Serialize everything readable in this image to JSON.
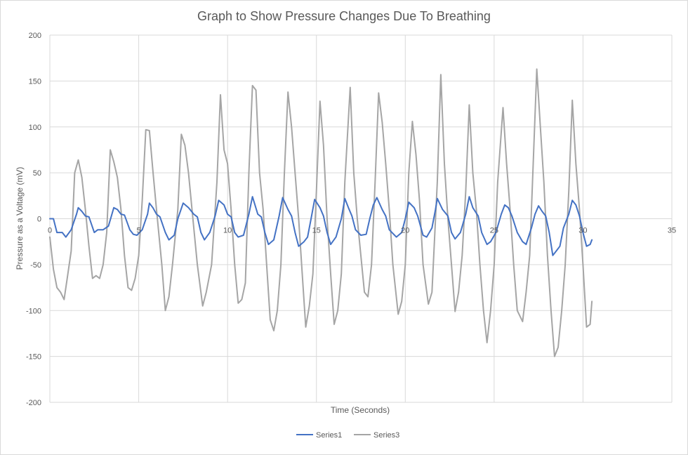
{
  "chart_data": {
    "type": "line",
    "title": "Graph to Show Pressure Changes Due To Breathing",
    "xlabel": "Time (Seconds)",
    "ylabel": "Pressure as a Voltage (mV)",
    "xlim": [
      0,
      35
    ],
    "ylim": [
      -200,
      200
    ],
    "x_ticks": [
      0,
      5,
      10,
      15,
      20,
      25,
      30,
      35
    ],
    "y_ticks": [
      -200,
      -150,
      -100,
      -50,
      0,
      50,
      100,
      150,
      200
    ],
    "grid": true,
    "legend_position": "bottom",
    "series": [
      {
        "name": "Series1",
        "color": "#4472C4",
        "points": [
          [
            0,
            0
          ],
          [
            0.2,
            0
          ],
          [
            0.4,
            -15
          ],
          [
            0.7,
            -15
          ],
          [
            0.9,
            -20
          ],
          [
            1.2,
            -12
          ],
          [
            1.5,
            5
          ],
          [
            1.6,
            12
          ],
          [
            1.8,
            8
          ],
          [
            2.0,
            3
          ],
          [
            2.2,
            2
          ],
          [
            2.5,
            -15
          ],
          [
            2.7,
            -12
          ],
          [
            3.0,
            -12
          ],
          [
            3.3,
            -8
          ],
          [
            3.6,
            12
          ],
          [
            3.8,
            10
          ],
          [
            4.0,
            5
          ],
          [
            4.2,
            4
          ],
          [
            4.5,
            -12
          ],
          [
            4.7,
            -17
          ],
          [
            4.9,
            -18
          ],
          [
            5.2,
            -12
          ],
          [
            5.5,
            5
          ],
          [
            5.6,
            17
          ],
          [
            5.8,
            12
          ],
          [
            6.0,
            5
          ],
          [
            6.2,
            2
          ],
          [
            6.5,
            -15
          ],
          [
            6.7,
            -23
          ],
          [
            7.0,
            -18
          ],
          [
            7.2,
            0
          ],
          [
            7.5,
            17
          ],
          [
            7.8,
            12
          ],
          [
            8.1,
            5
          ],
          [
            8.3,
            2
          ],
          [
            8.5,
            -15
          ],
          [
            8.7,
            -23
          ],
          [
            9.0,
            -15
          ],
          [
            9.3,
            3
          ],
          [
            9.5,
            20
          ],
          [
            9.8,
            15
          ],
          [
            10.0,
            5
          ],
          [
            10.2,
            2
          ],
          [
            10.4,
            -15
          ],
          [
            10.6,
            -20
          ],
          [
            10.9,
            -18
          ],
          [
            11.2,
            5
          ],
          [
            11.4,
            24
          ],
          [
            11.7,
            5
          ],
          [
            11.9,
            2
          ],
          [
            12.1,
            -15
          ],
          [
            12.3,
            -28
          ],
          [
            12.6,
            -23
          ],
          [
            12.9,
            3
          ],
          [
            13.1,
            23
          ],
          [
            13.4,
            10
          ],
          [
            13.6,
            3
          ],
          [
            13.8,
            -15
          ],
          [
            14.0,
            -30
          ],
          [
            14.3,
            -25
          ],
          [
            14.5,
            -20
          ],
          [
            14.7,
            0
          ],
          [
            14.9,
            21
          ],
          [
            15.2,
            12
          ],
          [
            15.4,
            3
          ],
          [
            15.6,
            -15
          ],
          [
            15.8,
            -28
          ],
          [
            16.1,
            -20
          ],
          [
            16.4,
            0
          ],
          [
            16.6,
            22
          ],
          [
            16.8,
            12
          ],
          [
            17.0,
            3
          ],
          [
            17.2,
            -12
          ],
          [
            17.5,
            -18
          ],
          [
            17.8,
            -17
          ],
          [
            18.0,
            0
          ],
          [
            18.2,
            15
          ],
          [
            18.4,
            23
          ],
          [
            18.7,
            10
          ],
          [
            18.9,
            3
          ],
          [
            19.1,
            -12
          ],
          [
            19.5,
            -20
          ],
          [
            19.8,
            -15
          ],
          [
            20.0,
            0
          ],
          [
            20.2,
            18
          ],
          [
            20.5,
            12
          ],
          [
            20.7,
            3
          ],
          [
            21.0,
            -18
          ],
          [
            21.2,
            -20
          ],
          [
            21.5,
            -10
          ],
          [
            21.7,
            10
          ],
          [
            21.8,
            22
          ],
          [
            22.1,
            10
          ],
          [
            22.4,
            3
          ],
          [
            22.6,
            -15
          ],
          [
            22.8,
            -22
          ],
          [
            23.1,
            -15
          ],
          [
            23.4,
            5
          ],
          [
            23.6,
            24
          ],
          [
            23.8,
            12
          ],
          [
            24.1,
            3
          ],
          [
            24.3,
            -15
          ],
          [
            24.6,
            -28
          ],
          [
            24.8,
            -25
          ],
          [
            25.1,
            -15
          ],
          [
            25.4,
            5
          ],
          [
            25.6,
            15
          ],
          [
            25.8,
            12
          ],
          [
            26.0,
            3
          ],
          [
            26.3,
            -15
          ],
          [
            26.6,
            -25
          ],
          [
            26.8,
            -28
          ],
          [
            27.1,
            -10
          ],
          [
            27.3,
            5
          ],
          [
            27.5,
            14
          ],
          [
            27.7,
            8
          ],
          [
            27.9,
            3
          ],
          [
            28.1,
            -15
          ],
          [
            28.3,
            -40
          ],
          [
            28.5,
            -35
          ],
          [
            28.7,
            -30
          ],
          [
            28.9,
            -10
          ],
          [
            29.2,
            5
          ],
          [
            29.4,
            20
          ],
          [
            29.6,
            15
          ],
          [
            29.8,
            3
          ],
          [
            30.0,
            -15
          ],
          [
            30.2,
            -30
          ],
          [
            30.4,
            -28
          ],
          [
            30.5,
            -23
          ]
        ]
      },
      {
        "name": "Series3",
        "color": "#A5A5A5",
        "points": [
          [
            0,
            -20
          ],
          [
            0.2,
            -55
          ],
          [
            0.4,
            -75
          ],
          [
            0.6,
            -80
          ],
          [
            0.8,
            -88
          ],
          [
            1.0,
            -62
          ],
          [
            1.2,
            -35
          ],
          [
            1.4,
            50
          ],
          [
            1.6,
            64
          ],
          [
            1.8,
            45
          ],
          [
            2.0,
            10
          ],
          [
            2.2,
            -30
          ],
          [
            2.4,
            -65
          ],
          [
            2.6,
            -62
          ],
          [
            2.8,
            -65
          ],
          [
            3.0,
            -50
          ],
          [
            3.2,
            -15
          ],
          [
            3.4,
            75
          ],
          [
            3.6,
            62
          ],
          [
            3.8,
            45
          ],
          [
            4.0,
            10
          ],
          [
            4.2,
            -40
          ],
          [
            4.4,
            -75
          ],
          [
            4.6,
            -78
          ],
          [
            4.8,
            -65
          ],
          [
            5.0,
            -40
          ],
          [
            5.2,
            20
          ],
          [
            5.4,
            97
          ],
          [
            5.6,
            96
          ],
          [
            5.8,
            52
          ],
          [
            6.0,
            10
          ],
          [
            6.3,
            -50
          ],
          [
            6.5,
            -100
          ],
          [
            6.7,
            -85
          ],
          [
            6.9,
            -50
          ],
          [
            7.2,
            10
          ],
          [
            7.4,
            92
          ],
          [
            7.6,
            80
          ],
          [
            7.8,
            50
          ],
          [
            8.0,
            10
          ],
          [
            8.3,
            -50
          ],
          [
            8.6,
            -95
          ],
          [
            8.8,
            -80
          ],
          [
            9.1,
            -50
          ],
          [
            9.4,
            40
          ],
          [
            9.6,
            135
          ],
          [
            9.8,
            75
          ],
          [
            10.0,
            60
          ],
          [
            10.2,
            10
          ],
          [
            10.4,
            -50
          ],
          [
            10.6,
            -92
          ],
          [
            10.8,
            -88
          ],
          [
            11.0,
            -70
          ],
          [
            11.2,
            50
          ],
          [
            11.4,
            145
          ],
          [
            11.6,
            140
          ],
          [
            11.8,
            50
          ],
          [
            12.0,
            10
          ],
          [
            12.2,
            -50
          ],
          [
            12.4,
            -110
          ],
          [
            12.6,
            -122
          ],
          [
            12.8,
            -100
          ],
          [
            13.0,
            -50
          ],
          [
            13.2,
            50
          ],
          [
            13.4,
            138
          ],
          [
            13.6,
            100
          ],
          [
            13.8,
            50
          ],
          [
            14.0,
            0
          ],
          [
            14.2,
            -60
          ],
          [
            14.4,
            -118
          ],
          [
            14.6,
            -95
          ],
          [
            14.8,
            -60
          ],
          [
            15.0,
            30
          ],
          [
            15.2,
            128
          ],
          [
            15.4,
            80
          ],
          [
            15.6,
            0
          ],
          [
            15.8,
            -60
          ],
          [
            16.0,
            -115
          ],
          [
            16.2,
            -100
          ],
          [
            16.4,
            -60
          ],
          [
            16.6,
            40
          ],
          [
            16.9,
            143
          ],
          [
            17.1,
            50
          ],
          [
            17.3,
            0
          ],
          [
            17.5,
            -40
          ],
          [
            17.7,
            -80
          ],
          [
            17.9,
            -85
          ],
          [
            18.1,
            -50
          ],
          [
            18.3,
            40
          ],
          [
            18.5,
            137
          ],
          [
            18.7,
            105
          ],
          [
            18.9,
            60
          ],
          [
            19.1,
            10
          ],
          [
            19.3,
            -50
          ],
          [
            19.6,
            -104
          ],
          [
            19.8,
            -90
          ],
          [
            20.0,
            -50
          ],
          [
            20.2,
            50
          ],
          [
            20.4,
            106
          ],
          [
            20.6,
            70
          ],
          [
            20.8,
            20
          ],
          [
            21.0,
            -50
          ],
          [
            21.3,
            -93
          ],
          [
            21.5,
            -80
          ],
          [
            21.8,
            40
          ],
          [
            22.0,
            157
          ],
          [
            22.2,
            60
          ],
          [
            22.4,
            0
          ],
          [
            22.6,
            -50
          ],
          [
            22.8,
            -101
          ],
          [
            23.0,
            -80
          ],
          [
            23.2,
            -40
          ],
          [
            23.4,
            30
          ],
          [
            23.6,
            124
          ],
          [
            23.8,
            50
          ],
          [
            24.0,
            10
          ],
          [
            24.2,
            -50
          ],
          [
            24.4,
            -100
          ],
          [
            24.6,
            -135
          ],
          [
            24.8,
            -100
          ],
          [
            25.0,
            -50
          ],
          [
            25.2,
            40
          ],
          [
            25.5,
            121
          ],
          [
            25.7,
            60
          ],
          [
            25.9,
            10
          ],
          [
            26.1,
            -50
          ],
          [
            26.3,
            -100
          ],
          [
            26.6,
            -112
          ],
          [
            26.8,
            -80
          ],
          [
            27.0,
            -40
          ],
          [
            27.2,
            60
          ],
          [
            27.4,
            163
          ],
          [
            27.6,
            100
          ],
          [
            27.8,
            40
          ],
          [
            28.0,
            -40
          ],
          [
            28.2,
            -100
          ],
          [
            28.4,
            -150
          ],
          [
            28.6,
            -140
          ],
          [
            28.8,
            -100
          ],
          [
            29.0,
            -50
          ],
          [
            29.2,
            30
          ],
          [
            29.4,
            129
          ],
          [
            29.6,
            60
          ],
          [
            29.8,
            10
          ],
          [
            30.0,
            -50
          ],
          [
            30.2,
            -118
          ],
          [
            30.4,
            -115
          ],
          [
            30.5,
            -90
          ]
        ]
      }
    ]
  }
}
